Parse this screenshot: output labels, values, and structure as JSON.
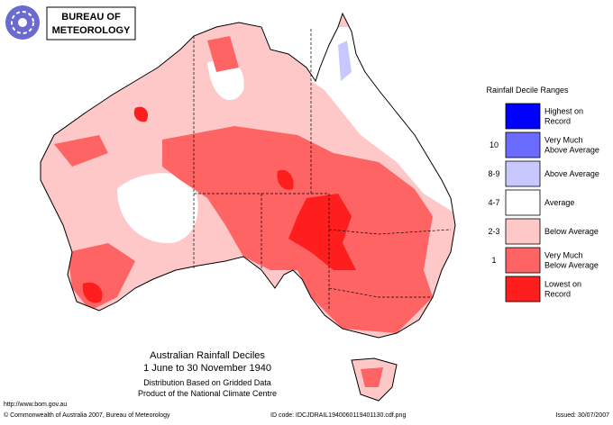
{
  "header": {
    "logo_lines": [
      "BUREAU OF",
      "METEOROLOGY"
    ]
  },
  "legend": {
    "title": "Rainfall Decile Ranges",
    "items": [
      {
        "lines": [
          "Highest on",
          "Record"
        ],
        "decile": null,
        "color": "#0000ff"
      },
      {
        "lines": [
          "Very Much",
          "Above Average"
        ],
        "decile": "10",
        "color": "#6b6bff"
      },
      {
        "lines": [
          "Above Average"
        ],
        "decile": "8-9",
        "color": "#c8c8ff"
      },
      {
        "lines": [
          "Average"
        ],
        "decile": "4-7",
        "color": "#ffffff"
      },
      {
        "lines": [
          "Below Average"
        ],
        "decile": "2-3",
        "color": "#ffc8c8"
      },
      {
        "lines": [
          "Very Much",
          "Below Average"
        ],
        "decile": "1",
        "color": "#ff6464"
      },
      {
        "lines": [
          "Lowest on",
          "Record"
        ],
        "decile": null,
        "color": "#ff1e1e"
      }
    ]
  },
  "caption": {
    "title_lines": [
      "Australian Rainfall Deciles",
      "1 June to 30 November 1940"
    ],
    "note_lines": [
      "Distribution Based on Gridded Data",
      "Product of the National Climate Centre"
    ]
  },
  "footer": {
    "url": "http://www.bom.gov.au",
    "copyright": "© Commonwealth of Australia 2007, Bureau of Meteorology",
    "id_code": "ID code: IDCJDRAIL1940060119401130.cdf.png",
    "issued": "Issued: 30/07/2007"
  }
}
